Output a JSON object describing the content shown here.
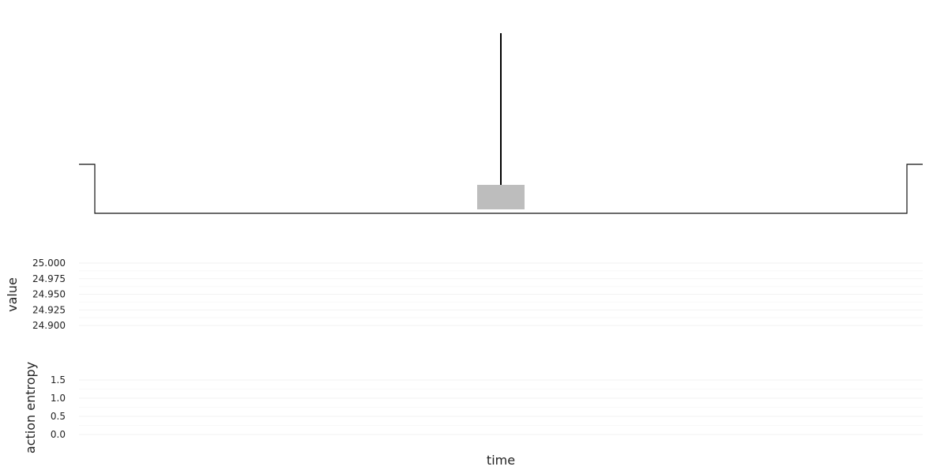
{
  "chart_data": [
    {
      "type": "diagram",
      "colors": {
        "ground": "#111111",
        "pole": "#000000",
        "cart": "#bdbdbd"
      }
    },
    {
      "type": "line",
      "xlabel": "",
      "ylabel": "value",
      "ylim": [
        24.9,
        25.0
      ],
      "yticks": [
        "25.000",
        "24.975",
        "24.950",
        "24.925",
        "24.900"
      ],
      "series": [],
      "grid": true
    },
    {
      "type": "line",
      "xlabel": "time",
      "ylabel": "action entropy",
      "ylim": [
        0.0,
        1.5
      ],
      "yticks": [
        "1.5",
        "1.0",
        "0.5",
        "0.0"
      ],
      "series": [],
      "grid": true
    }
  ]
}
